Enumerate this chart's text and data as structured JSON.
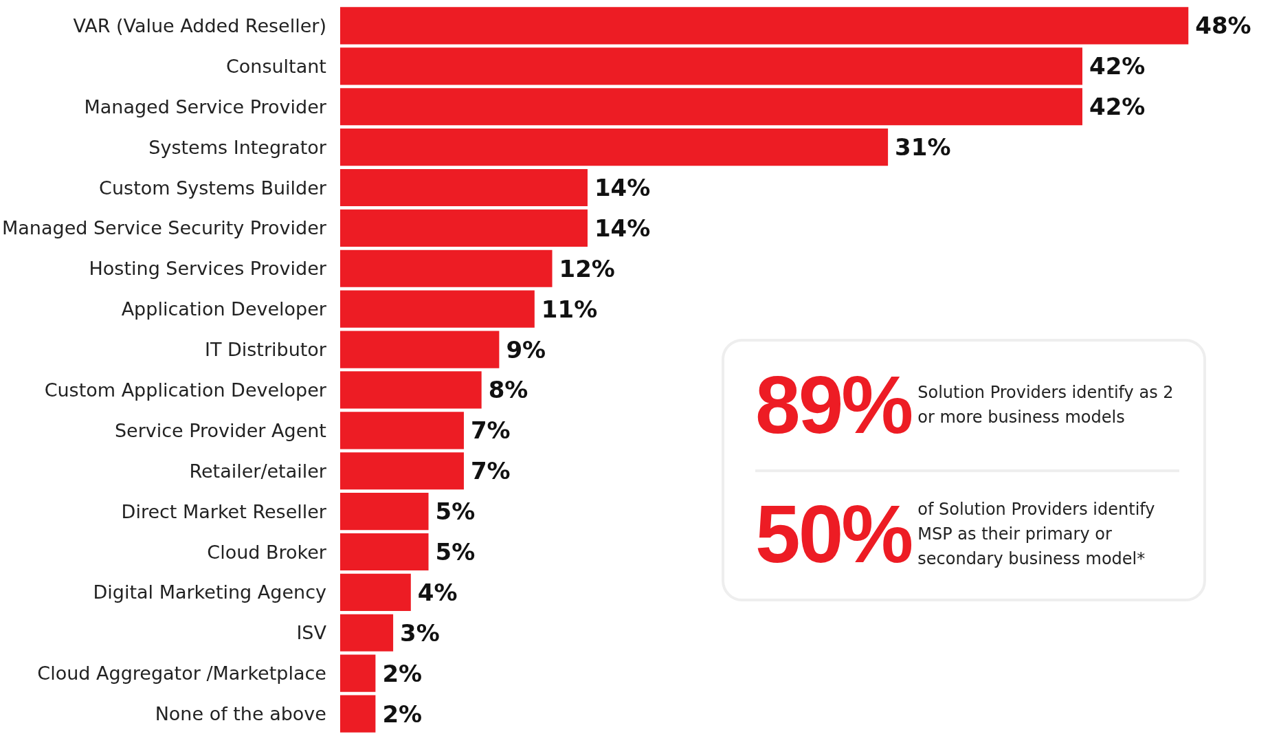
{
  "chart_data": {
    "type": "bar",
    "orientation": "horizontal",
    "categories": [
      "VAR (Value Added Reseller)",
      "Consultant",
      "Managed Service Provider",
      "Systems Integrator",
      "Custom Systems Builder",
      "Managed Service Security Provider",
      "Hosting Services Provider",
      "Application Developer",
      "IT Distributor",
      "Custom Application Developer",
      "Service Provider Agent",
      "Retailer/etailer",
      "Direct Market Reseller",
      "Cloud Broker",
      "Digital Marketing Agency",
      "ISV",
      "Cloud Aggregator /Marketplace",
      "None of the above"
    ],
    "values": [
      48,
      42,
      42,
      31,
      14,
      14,
      12,
      11,
      9,
      8,
      7,
      7,
      5,
      5,
      4,
      3,
      2,
      2
    ],
    "value_labels": [
      "48%",
      "42%",
      "42%",
      "31%",
      "14%",
      "14%",
      "12%",
      "11%",
      "9%",
      "8%",
      "7%",
      "7%",
      "5%",
      "5%",
      "4%",
      "3%",
      "2%",
      "2%"
    ],
    "color": "#ed1c24",
    "tick_labels": false,
    "annotations": [
      "89%",
      "Solution Providers identify as 2 or more business models",
      "50%",
      "of Solution Providers identify MSP as their primary or secondary business model*"
    ]
  }
}
